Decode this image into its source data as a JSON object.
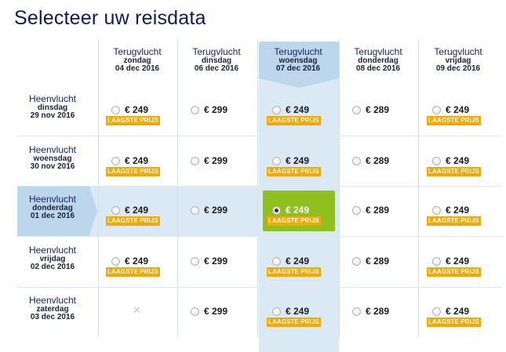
{
  "title": "Selecteer uw reisdata",
  "columns": [
    {
      "label": "Terugvlucht",
      "day": "zondag",
      "date": "04 dec 2016"
    },
    {
      "label": "Terugvlucht",
      "day": "dinsdag",
      "date": "06 dec 2016"
    },
    {
      "label": "Terugvlucht",
      "day": "woensdag",
      "date": "07 dec 2016"
    },
    {
      "label": "Terugvlucht",
      "day": "donderdag",
      "date": "08 dec 2016"
    },
    {
      "label": "Terugvlucht",
      "day": "vrijdag",
      "date": "09 dec 2016"
    }
  ],
  "rows": [
    {
      "label": "Heenvlucht",
      "day": "dinsdag",
      "date": "29 nov 2016",
      "cells": [
        {
          "price": "€ 249",
          "badge": "LAAGSTE PRIJS"
        },
        {
          "price": "€ 299"
        },
        {
          "price": "€ 249",
          "badge": "LAAGSTE PRIJS"
        },
        {
          "price": "€ 289"
        },
        {
          "price": "€ 249",
          "badge": "LAAGSTE PRIJS"
        }
      ]
    },
    {
      "label": "Heenvlucht",
      "day": "woensdag",
      "date": "30 nov 2016",
      "cells": [
        {
          "price": "€ 249",
          "badge": "LAAGSTE PRIJS"
        },
        {
          "price": "€ 299"
        },
        {
          "price": "€ 249",
          "badge": "LAAGSTE PRIJS"
        },
        {
          "price": "€ 289"
        },
        {
          "price": "€ 249",
          "badge": "LAAGSTE PRIJS"
        }
      ]
    },
    {
      "label": "Heenvlucht",
      "day": "donderdag",
      "date": "01 dec 2016",
      "cells": [
        {
          "price": "€ 249",
          "badge": "LAAGSTE PRIJS"
        },
        {
          "price": "€ 299"
        },
        {
          "price": "€ 249",
          "badge": "LAAGSTE PRIJS",
          "selected": true
        },
        {
          "price": "€ 289"
        },
        {
          "price": "€ 249",
          "badge": "LAAGSTE PRIJS"
        }
      ]
    },
    {
      "label": "Heenvlucht",
      "day": "vrijdag",
      "date": "02 dec 2016",
      "cells": [
        {
          "price": "€ 249",
          "badge": "LAAGSTE PRIJS"
        },
        {
          "price": "€ 299"
        },
        {
          "price": "€ 249",
          "badge": "LAAGSTE PRIJS"
        },
        {
          "price": "€ 289"
        },
        {
          "price": "€ 249",
          "badge": "LAAGSTE PRIJS"
        }
      ]
    },
    {
      "label": "Heenvlucht",
      "day": "zaterdag",
      "date": "03 dec 2016",
      "cells": [
        {
          "unavailable": true,
          "icon": "cross-icon"
        },
        {
          "price": "€ 299"
        },
        {
          "price": "€ 249",
          "badge": "LAAGSTE PRIJS"
        },
        {
          "price": "€ 289"
        },
        {
          "price": "€ 249",
          "badge": "LAAGSTE PRIJS"
        }
      ]
    }
  ],
  "colors": {
    "title": "#0d1a5c",
    "badge": "#f5a800",
    "selected": "#90c01f",
    "highlight": "#dbe9f5",
    "highlight_header": "#bcd7ec"
  }
}
